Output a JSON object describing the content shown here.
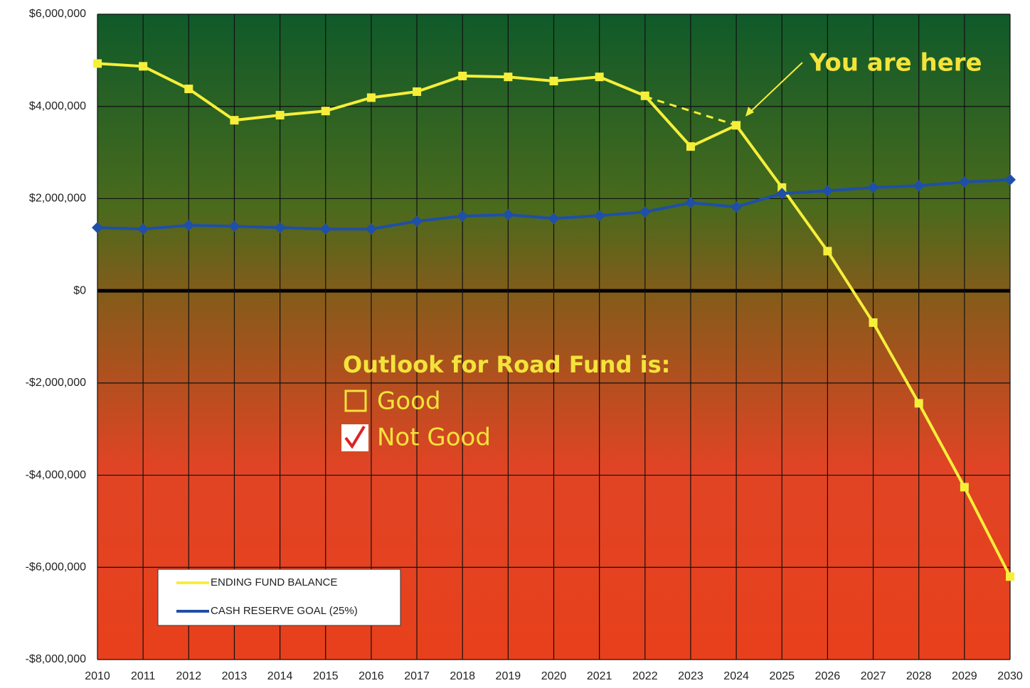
{
  "chart_data": {
    "type": "line",
    "categories": [
      "2010",
      "2011",
      "2012",
      "2013",
      "2014",
      "2015",
      "2016",
      "2017",
      "2018",
      "2019",
      "2020",
      "2021",
      "2022",
      "2023",
      "2024",
      "2025",
      "2026",
      "2027",
      "2028",
      "2029",
      "2030"
    ],
    "series": [
      {
        "name": "ENDING FUND BALANCE",
        "color": "#f5ef3a",
        "values": [
          4930000,
          4870000,
          4380000,
          3700000,
          3810000,
          3900000,
          4190000,
          4320000,
          4660000,
          4640000,
          4550000,
          4640000,
          4230000,
          3130000,
          3590000,
          2240000,
          860000,
          -690000,
          -2440000,
          -4260000,
          -6200000
        ]
      },
      {
        "name": "CASH RESERVE GOAL (25%)",
        "color": "#1f4fa8",
        "values": [
          1370000,
          1340000,
          1420000,
          1400000,
          1370000,
          1340000,
          1340000,
          1510000,
          1620000,
          1650000,
          1570000,
          1630000,
          1710000,
          1910000,
          1820000,
          2110000,
          2170000,
          2240000,
          2280000,
          2360000,
          2410000
        ]
      }
    ],
    "ylim": [
      -8000000,
      6000000
    ],
    "yticks": [
      {
        "value": -8000000,
        "label": "-$8,000,000"
      },
      {
        "value": -6000000,
        "label": "-$6,000,000"
      },
      {
        "value": -4000000,
        "label": "-$4,000,000"
      },
      {
        "value": -2000000,
        "label": "-$2,000,000"
      },
      {
        "value": 0,
        "label": "$0"
      },
      {
        "value": 2000000,
        "label": "$2,000,000"
      },
      {
        "value": 4000000,
        "label": "$4,000,000"
      },
      {
        "value": 6000000,
        "label": "$6,000,000"
      }
    ],
    "grid": true,
    "legend": "lower left",
    "annotations": [
      "You are here",
      "Outlook for Road Fund is:",
      "Good",
      "Not Good"
    ]
  }
}
